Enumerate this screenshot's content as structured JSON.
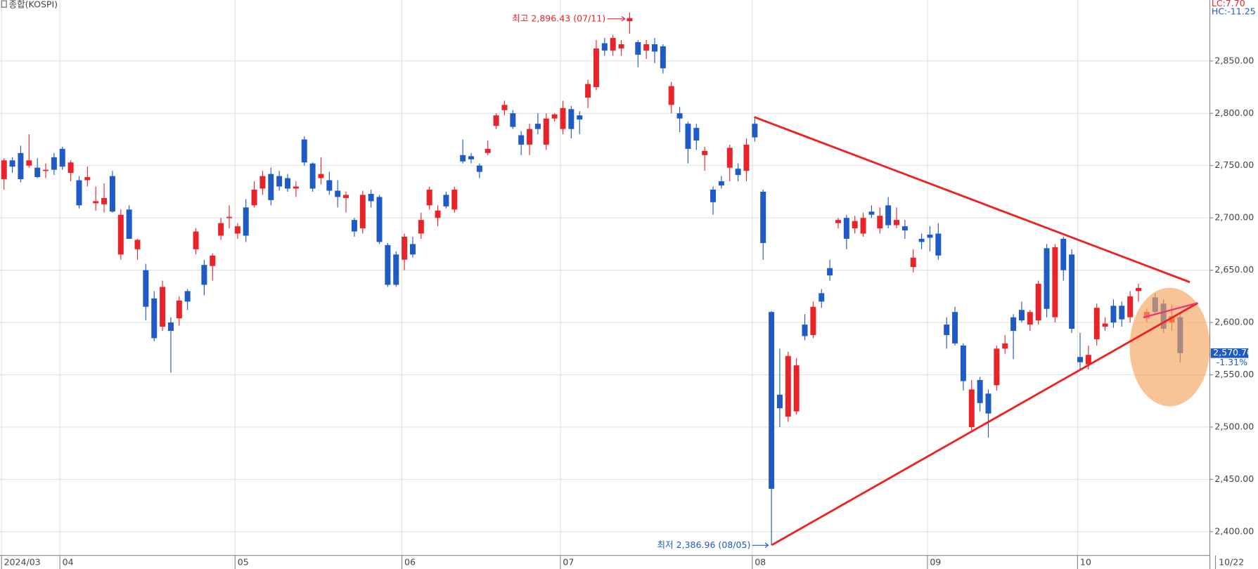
{
  "chart_data": {
    "type": "candlestick",
    "title": "종합(KOSPI)",
    "lc_label": "LC:7.70",
    "hc_label": "HC:-11.25",
    "high_annotation": "최고 2,896.43 (07/11)",
    "low_annotation": "최저 2,386.96 (08/05)",
    "last_label": "2,570.70",
    "change_label": "-1.31%",
    "end_date_label": "10/22",
    "up_color": "#e8242a",
    "down_color": "#1e5bc6",
    "grid": true,
    "ylim": [
      2377,
      2906
    ],
    "yticks": [
      {
        "value": 2400,
        "label": "2,400.00"
      },
      {
        "value": 2450,
        "label": "2,450.00"
      },
      {
        "value": 2500,
        "label": "2,500.00"
      },
      {
        "value": 2550,
        "label": "2,550.00"
      },
      {
        "value": 2600,
        "label": "2,600.00"
      },
      {
        "value": 2650,
        "label": "2,650.00"
      },
      {
        "value": 2700,
        "label": "2,700.00"
      },
      {
        "value": 2750,
        "label": "2,750.00"
      },
      {
        "value": 2800,
        "label": "2,800.00"
      },
      {
        "value": 2850,
        "label": "2,850.00"
      }
    ],
    "categories": [
      "2024/03",
      null,
      null,
      null,
      null,
      null,
      null,
      "04",
      null,
      null,
      null,
      null,
      null,
      null,
      null,
      null,
      null,
      null,
      null,
      null,
      null,
      null,
      null,
      null,
      null,
      null,
      null,
      null,
      "05",
      null,
      null,
      null,
      null,
      null,
      null,
      null,
      null,
      null,
      null,
      null,
      null,
      null,
      null,
      null,
      null,
      null,
      null,
      null,
      "06",
      null,
      null,
      null,
      null,
      null,
      null,
      null,
      null,
      null,
      null,
      null,
      null,
      null,
      null,
      null,
      null,
      null,
      null,
      "07",
      null,
      null,
      null,
      null,
      null,
      null,
      null,
      null,
      null,
      null,
      null,
      null,
      null,
      null,
      null,
      null,
      null,
      null,
      null,
      null,
      null,
      null,
      "08",
      null,
      null,
      null,
      null,
      null,
      null,
      null,
      null,
      null,
      null,
      null,
      null,
      null,
      null,
      null,
      null,
      null,
      null,
      null,
      null,
      "09",
      null,
      null,
      null,
      null,
      null,
      null,
      null,
      null,
      null,
      null,
      null,
      null,
      null,
      null,
      null,
      null,
      null,
      "10",
      null,
      null,
      null,
      null,
      null,
      null,
      null,
      null,
      null,
      null,
      null,
      null
    ],
    "ohlc": [
      [
        2737,
        2757,
        2727,
        2755
      ],
      [
        2755,
        2758,
        2743,
        2749
      ],
      [
        2762,
        2769,
        2734,
        2737
      ],
      [
        2750,
        2780,
        2748,
        2755
      ],
      [
        2748,
        2757,
        2738,
        2739
      ],
      [
        2745,
        2752,
        2738,
        2746
      ],
      [
        2758,
        2762,
        2741,
        2746
      ],
      [
        2766,
        2768,
        2746,
        2749
      ],
      [
        2743,
        2755,
        2735,
        2753
      ],
      [
        2736,
        2740,
        2709,
        2712
      ],
      [
        2736,
        2749,
        2730,
        2739
      ],
      [
        2714,
        2730,
        2707,
        2716
      ],
      [
        2713,
        2733,
        2705,
        2719
      ],
      [
        2740,
        2745,
        2705,
        2706
      ],
      [
        2665,
        2708,
        2660,
        2703
      ],
      [
        2708,
        2712,
        2680,
        2680
      ],
      [
        2670,
        2680,
        2660,
        2679
      ],
      [
        2650,
        2656,
        2602,
        2615
      ],
      [
        2623,
        2630,
        2582,
        2585
      ],
      [
        2596,
        2640,
        2592,
        2634
      ],
      [
        2600,
        2605,
        2552,
        2592
      ],
      [
        2604,
        2625,
        2597,
        2621
      ],
      [
        2630,
        2632,
        2612,
        2620
      ],
      [
        2670,
        2690,
        2665,
        2687
      ],
      [
        2655,
        2660,
        2626,
        2636
      ],
      [
        2654,
        2666,
        2640,
        2664
      ],
      [
        2683,
        2700,
        2679,
        2695
      ],
      [
        2700,
        2712,
        2690,
        2701
      ],
      [
        2685,
        2695,
        2680,
        2692
      ],
      [
        2710,
        2718,
        2677,
        2683
      ],
      [
        2712,
        2735,
        2710,
        2727
      ],
      [
        2728,
        2745,
        2722,
        2740
      ],
      [
        2742,
        2748,
        2712,
        2717
      ],
      [
        2740,
        2745,
        2726,
        2730
      ],
      [
        2738,
        2742,
        2725,
        2728
      ],
      [
        2728,
        2735,
        2720,
        2730
      ],
      [
        2775,
        2778,
        2750,
        2753
      ],
      [
        2752,
        2753,
        2725,
        2728
      ],
      [
        2738,
        2758,
        2732,
        2742
      ],
      [
        2736,
        2744,
        2722,
        2726
      ],
      [
        2726,
        2736,
        2710,
        2720
      ],
      [
        2719,
        2725,
        2705,
        2722
      ],
      [
        2698,
        2700,
        2682,
        2687
      ],
      [
        2690,
        2726,
        2685,
        2722
      ],
      [
        2723,
        2727,
        2710,
        2716
      ],
      [
        2720,
        2722,
        2675,
        2677
      ],
      [
        2674,
        2676,
        2634,
        2636
      ],
      [
        2665,
        2668,
        2634,
        2636
      ],
      [
        2660,
        2685,
        2650,
        2682
      ],
      [
        2675,
        2682,
        2662,
        2665
      ],
      [
        2685,
        2705,
        2680,
        2698
      ],
      [
        2712,
        2730,
        2708,
        2727
      ],
      [
        2700,
        2712,
        2692,
        2707
      ],
      [
        2722,
        2725,
        2709,
        2711
      ],
      [
        2708,
        2730,
        2705,
        2727
      ],
      [
        2760,
        2775,
        2752,
        2754
      ],
      [
        2759,
        2762,
        2752,
        2756
      ],
      [
        2750,
        2752,
        2738,
        2744
      ],
      [
        2762,
        2774,
        2760,
        2766
      ],
      [
        2788,
        2800,
        2785,
        2798
      ],
      [
        2803,
        2812,
        2798,
        2808
      ],
      [
        2800,
        2803,
        2785,
        2787
      ],
      [
        2779,
        2783,
        2760,
        2770
      ],
      [
        2770,
        2790,
        2760,
        2785
      ],
      [
        2790,
        2800,
        2780,
        2785
      ],
      [
        2770,
        2800,
        2765,
        2795
      ],
      [
        2795,
        2800,
        2792,
        2799
      ],
      [
        2785,
        2812,
        2780,
        2805
      ],
      [
        2804,
        2807,
        2776,
        2785
      ],
      [
        2798,
        2802,
        2780,
        2794
      ],
      [
        2815,
        2832,
        2805,
        2828
      ],
      [
        2825,
        2870,
        2822,
        2862
      ],
      [
        2867,
        2872,
        2855,
        2860
      ],
      [
        2860,
        2875,
        2855,
        2872
      ],
      [
        2862,
        2870,
        2855,
        2866
      ],
      [
        2888,
        2896.43,
        2876,
        2891
      ],
      [
        2868,
        2870,
        2844,
        2856
      ],
      [
        2860,
        2870,
        2852,
        2866
      ],
      [
        2866,
        2872,
        2848,
        2859
      ],
      [
        2864,
        2866,
        2838,
        2843
      ],
      [
        2808,
        2830,
        2800,
        2826
      ],
      [
        2800,
        2806,
        2782,
        2795
      ],
      [
        2790,
        2792,
        2752,
        2766
      ],
      [
        2786,
        2790,
        2765,
        2774
      ],
      [
        2760,
        2768,
        2745,
        2764
      ],
      [
        2727,
        2730,
        2703,
        2715
      ],
      [
        2735,
        2740,
        2728,
        2731
      ],
      [
        2748,
        2770,
        2735,
        2767
      ],
      [
        2747,
        2752,
        2735,
        2741
      ],
      [
        2745,
        2776,
        2735,
        2770
      ],
      [
        2790,
        2795,
        2773,
        2777
      ],
      [
        2725,
        2727,
        2660,
        2676
      ],
      [
        2610,
        2611,
        2386.96,
        2441
      ],
      [
        2531,
        2575,
        2500,
        2518
      ],
      [
        2510,
        2572,
        2505,
        2568
      ],
      [
        2515,
        2566,
        2512,
        2559
      ],
      [
        2598,
        2608,
        2583,
        2587
      ],
      [
        2588,
        2620,
        2585,
        2615
      ],
      [
        2628,
        2632,
        2614,
        2620
      ],
      [
        2652,
        2660,
        2640,
        2645
      ],
      [
        2695,
        2700,
        2690,
        2698
      ],
      [
        2700,
        2703,
        2670,
        2680
      ],
      [
        2690,
        2702,
        2685,
        2697
      ],
      [
        2685,
        2705,
        2682,
        2700
      ],
      [
        2706,
        2712,
        2700,
        2703
      ],
      [
        2690,
        2710,
        2685,
        2702
      ],
      [
        2712,
        2720,
        2690,
        2693
      ],
      [
        2693,
        2710,
        2690,
        2698
      ],
      [
        2692,
        2698,
        2680,
        2688
      ],
      [
        2653,
        2670,
        2648,
        2662
      ],
      [
        2680,
        2685,
        2670,
        2677
      ],
      [
        2684,
        2692,
        2668,
        2681
      ],
      [
        2685,
        2695,
        2660,
        2664
      ],
      [
        2598,
        2605,
        2575,
        2588
      ],
      [
        2610,
        2615,
        2578,
        2580
      ],
      [
        2578,
        2580,
        2535,
        2544
      ],
      [
        2500,
        2545,
        2497,
        2536
      ],
      [
        2545,
        2548,
        2515,
        2523
      ],
      [
        2532,
        2536,
        2490,
        2513
      ],
      [
        2540,
        2578,
        2535,
        2575
      ],
      [
        2575,
        2588,
        2570,
        2580
      ],
      [
        2605,
        2608,
        2565,
        2592
      ],
      [
        2612,
        2620,
        2600,
        2602
      ],
      [
        2598,
        2612,
        2592,
        2610
      ],
      [
        2602,
        2640,
        2598,
        2637
      ],
      [
        2671,
        2675,
        2605,
        2613
      ],
      [
        2605,
        2675,
        2600,
        2672
      ],
      [
        2680,
        2682,
        2640,
        2650
      ],
      [
        2665,
        2670,
        2590,
        2594
      ],
      [
        2567,
        2590,
        2555,
        2562
      ],
      [
        2560,
        2578,
        2555,
        2569
      ],
      [
        2584,
        2618,
        2578,
        2614
      ],
      [
        2596,
        2605,
        2592,
        2599
      ],
      [
        2616,
        2622,
        2595,
        2600
      ],
      [
        2616,
        2620,
        2596,
        2603
      ],
      [
        2605,
        2630,
        2600,
        2625
      ],
      [
        2630,
        2637,
        2620,
        2633
      ],
      [
        2604,
        2613,
        2600,
        2610
      ],
      [
        2624,
        2628,
        2608,
        2610
      ],
      [
        2618,
        2622,
        2590,
        2594
      ],
      [
        2600,
        2617,
        2592,
        2606
      ],
      [
        2605,
        2608,
        2562,
        2570.7
      ]
    ]
  }
}
